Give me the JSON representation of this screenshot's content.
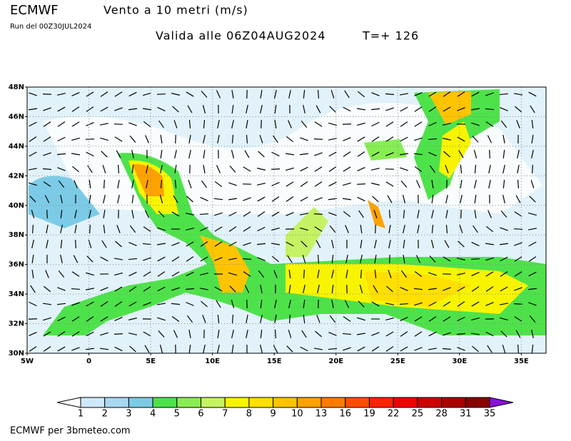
{
  "header": {
    "model": "ECMWF",
    "title": "Vento a 10 metri (m/s)",
    "run": "Run del 00Z30JUL2024",
    "valid": "Valida alle 06Z04AUG2024",
    "step": "T=+ 126"
  },
  "map": {
    "xlim": [
      -5,
      37
    ],
    "ylim": [
      30,
      48
    ],
    "lat_ticks": [
      {
        "value": 48,
        "label": "48N"
      },
      {
        "value": 46,
        "label": "46N"
      },
      {
        "value": 44,
        "label": "44N"
      },
      {
        "value": 42,
        "label": "42N"
      },
      {
        "value": 40,
        "label": "40N"
      },
      {
        "value": 38,
        "label": "38N"
      },
      {
        "value": 36,
        "label": "36N"
      },
      {
        "value": 34,
        "label": "34N"
      },
      {
        "value": 32,
        "label": "32N"
      },
      {
        "value": 30,
        "label": "30N"
      }
    ],
    "lon_ticks": [
      {
        "value": -5,
        "label": "5W"
      },
      0,
      {
        "value": 5,
        "label": "5E"
      },
      {
        "value": 10,
        "label": "10E"
      },
      {
        "value": 15,
        "label": "15E"
      },
      {
        "value": 20,
        "label": "20E"
      },
      {
        "value": 25,
        "label": "25E"
      },
      {
        "value": 30,
        "label": "30E"
      },
      {
        "value": 35,
        "label": "35E"
      }
    ]
  },
  "colorbar": {
    "levels": [
      1,
      2,
      3,
      4,
      5,
      6,
      7,
      8,
      9,
      10,
      13,
      16,
      19,
      22,
      25,
      28,
      31,
      35
    ],
    "colors": [
      "#cde8f8",
      "#a8d8f0",
      "#7ccbe6",
      "#4ee24a",
      "#86ee52",
      "#c4f262",
      "#f8f400",
      "#ffe000",
      "#ffc400",
      "#ffa200",
      "#ff7a00",
      "#ff4c00",
      "#ff2200",
      "#ee0000",
      "#cc0000",
      "#aa0000",
      "#8a0000"
    ],
    "under_color": "#ffffff",
    "over_color": "#8a10d8"
  },
  "footer": "ECMWF per 3bmeteo.com"
}
